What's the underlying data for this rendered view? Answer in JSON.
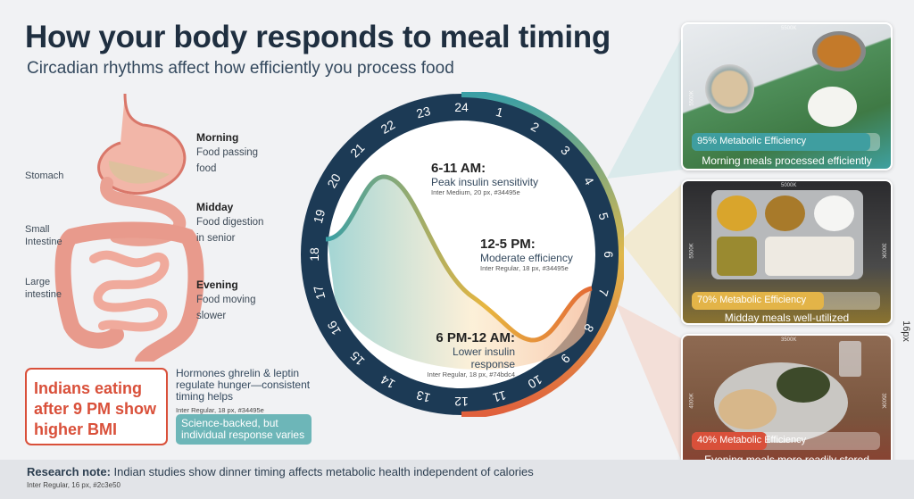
{
  "header": {
    "title": "How your body responds to meal timing",
    "subtitle": "Circadian rhythms affect how efficiently you process food"
  },
  "anatomy": {
    "labels": [
      "Stomach",
      "Small Intestine",
      "Large intestine"
    ],
    "annotations": [
      {
        "time": "Morning",
        "text": "Food passing food"
      },
      {
        "time": "Midday",
        "text": "Food digestion in senior"
      },
      {
        "time": "Evening",
        "text": "Food moving slower"
      }
    ]
  },
  "callout": {
    "headline": "Indians eating after 9 PM show higher BMI",
    "hormones": "Hormones ghrelin & leptin regulate hunger—consistent timing helps",
    "hormones_note": "Inter Regular, 18 px, #34495e",
    "badge": "Science-backed, but individual response varies"
  },
  "clock": {
    "hours": [
      "24",
      "1",
      "2",
      "3",
      "4",
      "5",
      "6",
      "7",
      "8",
      "9",
      "10",
      "11",
      "12",
      "13",
      "14",
      "15",
      "16",
      "17",
      "18",
      "19",
      "20",
      "21",
      "22",
      "23"
    ],
    "ring_color": "#1c3a55",
    "segments": [
      {
        "title": "6-11 AM:",
        "desc": "Peak insulin sensitivity",
        "note": "Inter Medium, 20 px, #34495e"
      },
      {
        "title": "12-5 PM:",
        "desc": "Moderate efficiency",
        "note": "Inter Regular, 18 px, #34495e"
      },
      {
        "title": "6 PM-12 AM:",
        "desc": "Lower insulin response",
        "note": "Inter Regular, 18 px, #74bdc4"
      }
    ]
  },
  "meals": [
    {
      "efficiency": 95,
      "label": "95% Metabolic Efficiency",
      "caption": "Morning meals processed efficiently",
      "color": "#3f9ea0",
      "kelvin": [
        "5500K",
        "5500K"
      ]
    },
    {
      "efficiency": 70,
      "label": "70% Metabolic Efficiency",
      "caption": "Midday meals well-utilized",
      "color": "#e3b448",
      "kelvin": [
        "5000K",
        "5500K",
        "3000K"
      ]
    },
    {
      "efficiency": 40,
      "label": "40% Metabolic Efficiency",
      "caption": "Evening meals more readily stored",
      "color": "#d9503a",
      "kelvin": [
        "3500K",
        "4000K",
        "3500K"
      ]
    }
  ],
  "side_note": "16px",
  "footer": {
    "label": "Research note:",
    "text": " Indian studies show dinner timing affects metabolic health independent of calories",
    "note": "Inter Regular, 16 px, #2c3e50"
  }
}
